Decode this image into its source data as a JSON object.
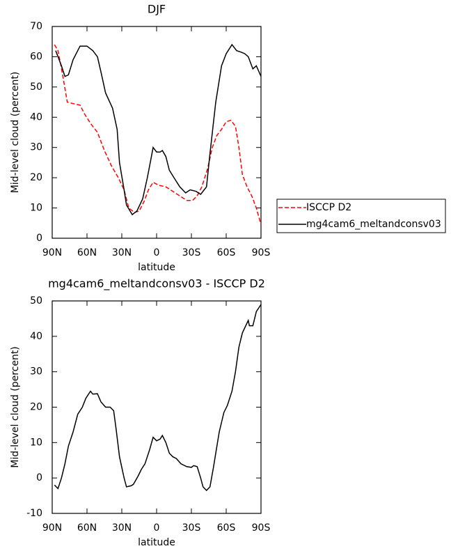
{
  "chart_data": [
    {
      "type": "line",
      "title": "DJF",
      "xlabel": "latitude",
      "ylabel": "Mid-level cloud (percent)",
      "xlim": [
        90,
        -90
      ],
      "xticks": [
        {
          "value": 90,
          "label": "90N"
        },
        {
          "value": 60,
          "label": "60N"
        },
        {
          "value": 30,
          "label": "30N"
        },
        0,
        {
          "value": -30,
          "label": "30S"
        },
        {
          "value": -60,
          "label": "60S"
        },
        {
          "value": -90,
          "label": "90S"
        }
      ],
      "ylim": [
        0,
        70
      ],
      "yticks": [
        0,
        10,
        20,
        30,
        40,
        50,
        60,
        70
      ],
      "legend": "right",
      "series": [
        {
          "name": "ISCCP D2",
          "color": "#ff0000",
          "line_style": "dashed",
          "x": [
            88,
            85,
            81,
            77,
            72,
            66,
            62,
            57,
            51,
            45,
            39,
            33,
            28,
            24,
            19,
            15,
            11,
            7,
            3,
            -2,
            -8,
            -14,
            -20,
            -26,
            -31,
            -35,
            -39,
            -44,
            -48,
            -52,
            -56,
            -60,
            -64,
            -68,
            -71,
            -74,
            -78,
            -82,
            -86,
            -90
          ],
          "values": [
            64,
            62,
            54,
            45,
            44.5,
            44,
            41,
            38,
            35,
            29,
            24,
            20,
            16,
            10,
            8.5,
            9,
            12,
            16,
            18.5,
            17.5,
            17,
            15.5,
            14,
            12.5,
            12.5,
            14,
            17,
            23,
            30,
            34,
            36,
            38.5,
            39,
            37,
            30,
            21,
            17,
            14,
            10,
            4.5
          ]
        },
        {
          "name": "mg4cam6_meltandconsv03",
          "color": "#000000",
          "line_style": "solid",
          "x": [
            87,
            82,
            79,
            76,
            72,
            66,
            60,
            55,
            51,
            48,
            44,
            38,
            34,
            32,
            28,
            26,
            21,
            17,
            12,
            8,
            5,
            3,
            0,
            -3,
            -5,
            -8,
            -11,
            -15,
            -20,
            -25,
            -29,
            -34,
            -38,
            -43,
            -46,
            -51,
            -56,
            -60,
            -65,
            -69,
            -73,
            -76,
            -79,
            -83,
            -86,
            -90
          ],
          "values": [
            62,
            57,
            53.5,
            54,
            59,
            63.5,
            63.5,
            62,
            60,
            55,
            48,
            43,
            36,
            25,
            16,
            11,
            7.8,
            9,
            13,
            20,
            26,
            30,
            28.5,
            28.5,
            29,
            27,
            22.5,
            20,
            17,
            15,
            16,
            15.5,
            14.5,
            17,
            28,
            45,
            57,
            61,
            64,
            62,
            61.5,
            61,
            60,
            56,
            57,
            53.5
          ]
        }
      ]
    },
    {
      "type": "line",
      "title": "mg4cam6_meltandconsv03 - ISCCP D2",
      "xlabel": "latitude",
      "ylabel": "Mid-level cloud (percent)",
      "xlim": [
        90,
        -90
      ],
      "xticks": [
        {
          "value": 90,
          "label": "90N"
        },
        {
          "value": 60,
          "label": "60N"
        },
        {
          "value": 30,
          "label": "30N"
        },
        0,
        {
          "value": -30,
          "label": "30S"
        },
        {
          "value": -60,
          "label": "60S"
        },
        {
          "value": -90,
          "label": "90S"
        }
      ],
      "ylim": [
        -10,
        50
      ],
      "yticks": [
        -10,
        0,
        10,
        20,
        30,
        40,
        50
      ],
      "color": "#000000",
      "x": [
        88,
        85,
        82,
        79,
        76,
        72,
        68,
        64,
        61,
        57,
        55,
        51,
        48,
        44,
        40,
        37,
        35,
        32,
        28,
        26,
        22,
        20,
        16,
        13,
        10,
        6,
        3,
        0,
        -3,
        -5,
        -8,
        -11,
        -14,
        -17,
        -21,
        -26,
        -30,
        -32,
        -35,
        -38,
        -40,
        -43,
        -46,
        -49,
        -51,
        -54,
        -58,
        -61,
        -65,
        -68,
        -71,
        -74,
        -79,
        -80,
        -83,
        -86,
        -90
      ],
      "values": [
        -2,
        -3,
        0,
        4,
        9,
        13,
        18,
        20,
        22.5,
        24.5,
        23.7,
        23.8,
        21.5,
        20,
        20,
        19,
        14,
        6,
        0,
        -2.5,
        -2.2,
        -1.8,
        0.5,
        2.5,
        4,
        8,
        11.5,
        10.5,
        11,
        12,
        10,
        7,
        6,
        5.5,
        4,
        3.2,
        3,
        3.5,
        3.2,
        0,
        -2.5,
        -3.5,
        -2.5,
        3,
        7,
        13,
        18.5,
        20.5,
        24.5,
        30,
        37,
        41,
        44.5,
        43,
        43,
        47,
        49
      ]
    }
  ]
}
